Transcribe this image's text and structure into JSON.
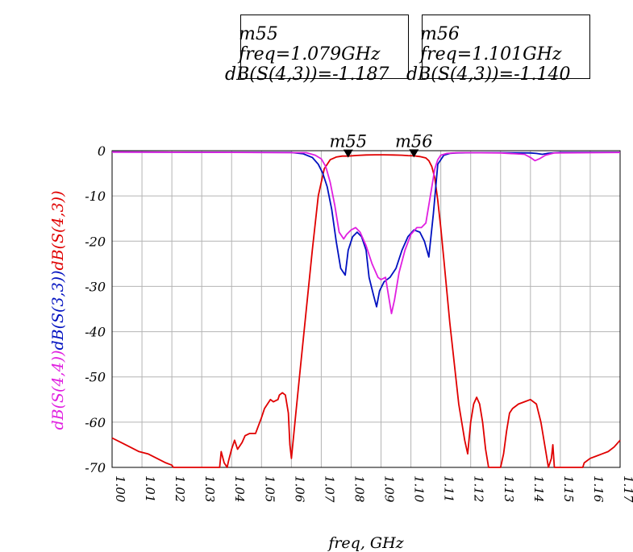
{
  "markers": [
    {
      "name": "m55",
      "freq_line": "freq=1.079GHz",
      "value_line": "dB(S(4,3))=-1.187",
      "freq": 1.079,
      "value": -1.187
    },
    {
      "name": "m56",
      "freq_line": "freq=1.101GHz",
      "value_line": "dB(S(4,3))=-1.140",
      "freq": 1.101,
      "value": -1.14
    }
  ],
  "chart_data": {
    "type": "line",
    "xlabel": "freq, GHz",
    "ylabel_parts": [
      {
        "text": "dB(S(4,4))",
        "color": "#e020e0"
      },
      {
        "text": "dB(S(3,3))",
        "color": "#0010c0"
      },
      {
        "text": "dB(S(4,3))",
        "color": "#e00000"
      }
    ],
    "xlim": [
      1.0,
      1.17
    ],
    "ylim": [
      -70,
      0
    ],
    "grid": true,
    "x_ticks": [
      "1.00",
      "1.01",
      "1.02",
      "1.03",
      "1.04",
      "1.05",
      "1.06",
      "1.07",
      "1.08",
      "1.09",
      "1.10",
      "1.11",
      "1.12",
      "1.13",
      "1.14",
      "1.15",
      "1.16",
      "1.17"
    ],
    "y_ticks": [
      "0",
      "-10",
      "-20",
      "-30",
      "-40",
      "-50",
      "-60",
      "-70"
    ],
    "series": [
      {
        "label": "dB(S(4,3))",
        "color": "#e00000",
        "x": [
          1.0,
          1.003,
          1.006,
          1.009,
          1.012,
          1.015,
          1.018,
          1.02,
          1.0205,
          1.036,
          1.0365,
          1.0375,
          1.0385,
          1.039,
          1.04,
          1.041,
          1.042,
          1.0435,
          1.0445,
          1.046,
          1.048,
          1.05,
          1.051,
          1.052,
          1.053,
          1.054,
          1.0555,
          1.056,
          1.057,
          1.058,
          1.059,
          1.0595,
          1.06,
          1.0615,
          1.063,
          1.065,
          1.067,
          1.069,
          1.071,
          1.073,
          1.075,
          1.077,
          1.079,
          1.082,
          1.085,
          1.088,
          1.091,
          1.094,
          1.097,
          1.099,
          1.101,
          1.103,
          1.105,
          1.106,
          1.107,
          1.108,
          1.109,
          1.11,
          1.111,
          1.112,
          1.113,
          1.114,
          1.115,
          1.116,
          1.117,
          1.118,
          1.119,
          1.12,
          1.121,
          1.122,
          1.123,
          1.124,
          1.125,
          1.126,
          1.127,
          1.1275,
          1.1285,
          1.13,
          1.131,
          1.132,
          1.133,
          1.134,
          1.136,
          1.138,
          1.14,
          1.142,
          1.1435,
          1.145,
          1.146,
          1.147,
          1.1475,
          1.148,
          1.1485,
          1.1575,
          1.158,
          1.16,
          1.162,
          1.164,
          1.166,
          1.168,
          1.17
        ],
        "y": [
          -63.5,
          -64.5,
          -65.5,
          -66.5,
          -67,
          -68,
          -69,
          -69.5,
          -70,
          -70,
          -66.5,
          -69,
          -70,
          -68.5,
          -66,
          -64,
          -66,
          -64.5,
          -63,
          -62.5,
          -62.5,
          -59,
          -57,
          -56,
          -55,
          -55.5,
          -55,
          -54,
          -53.5,
          -54,
          -58,
          -65,
          -68,
          -58,
          -48,
          -35,
          -22,
          -10,
          -4,
          -2,
          -1.4,
          -1.2,
          -1.187,
          -1.05,
          -0.95,
          -0.9,
          -0.9,
          -0.95,
          -1.0,
          -1.08,
          -1.14,
          -1.3,
          -1.6,
          -2.2,
          -3.5,
          -6,
          -11,
          -17,
          -24,
          -31,
          -38,
          -44,
          -50,
          -56,
          -60,
          -64,
          -67,
          -60,
          -56,
          -54.5,
          -56,
          -60,
          -66,
          -70,
          -70,
          -70,
          -70,
          -70,
          -67,
          -62,
          -58,
          -57,
          -56,
          -55.5,
          -55,
          -56,
          -60,
          -66,
          -70,
          -68,
          -65,
          -70,
          -70,
          -70,
          -69,
          -68,
          -67.5,
          -67,
          -66.5,
          -65.5,
          -64
        ]
      },
      {
        "label": "dB(S(3,3))",
        "color": "#0010c0",
        "x": [
          1.0,
          1.03,
          1.06,
          1.064,
          1.067,
          1.069,
          1.0705,
          1.072,
          1.0735,
          1.075,
          1.0765,
          1.078,
          1.079,
          1.0805,
          1.082,
          1.0835,
          1.085,
          1.086,
          1.0875,
          1.0885,
          1.0895,
          1.091,
          1.093,
          1.095,
          1.097,
          1.099,
          1.101,
          1.103,
          1.1045,
          1.106,
          1.1075,
          1.109,
          1.111,
          1.113,
          1.115,
          1.12,
          1.13,
          1.14,
          1.142,
          1.144,
          1.146,
          1.15,
          1.17
        ],
        "y": [
          -0.3,
          -0.35,
          -0.4,
          -0.7,
          -1.5,
          -3,
          -5,
          -8,
          -13,
          -20,
          -26,
          -27.5,
          -22,
          -19,
          -18,
          -19,
          -22,
          -28,
          -32,
          -34.5,
          -31,
          -29,
          -28,
          -26,
          -22,
          -19,
          -17.5,
          -18,
          -20,
          -23.5,
          -14,
          -3,
          -1,
          -0.6,
          -0.5,
          -0.45,
          -0.45,
          -0.5,
          -0.6,
          -0.8,
          -0.55,
          -0.4,
          -0.35
        ]
      },
      {
        "label": "dB(S(4,4))",
        "color": "#e020e0",
        "x": [
          1.0,
          1.03,
          1.065,
          1.068,
          1.07,
          1.0715,
          1.073,
          1.0745,
          1.076,
          1.0775,
          1.0785,
          1.08,
          1.0815,
          1.083,
          1.085,
          1.087,
          1.089,
          1.09,
          1.0915,
          1.0925,
          1.0935,
          1.0945,
          1.096,
          1.098,
          1.1,
          1.102,
          1.1035,
          1.105,
          1.1065,
          1.108,
          1.109,
          1.11,
          1.112,
          1.114,
          1.117,
          1.12,
          1.13,
          1.138,
          1.14,
          1.1415,
          1.143,
          1.145,
          1.148,
          1.17
        ],
        "y": [
          -0.3,
          -0.35,
          -0.45,
          -1,
          -1.8,
          -3.5,
          -7,
          -12,
          -18,
          -19.5,
          -18.5,
          -17.5,
          -17,
          -18,
          -21,
          -25,
          -28,
          -28.5,
          -28,
          -32,
          -36,
          -33,
          -27,
          -22,
          -18.5,
          -17,
          -17,
          -16,
          -10,
          -4,
          -2,
          -1,
          -0.6,
          -0.5,
          -0.45,
          -0.45,
          -0.5,
          -0.8,
          -1.5,
          -2.2,
          -1.8,
          -1,
          -0.5,
          -0.4
        ]
      }
    ]
  }
}
